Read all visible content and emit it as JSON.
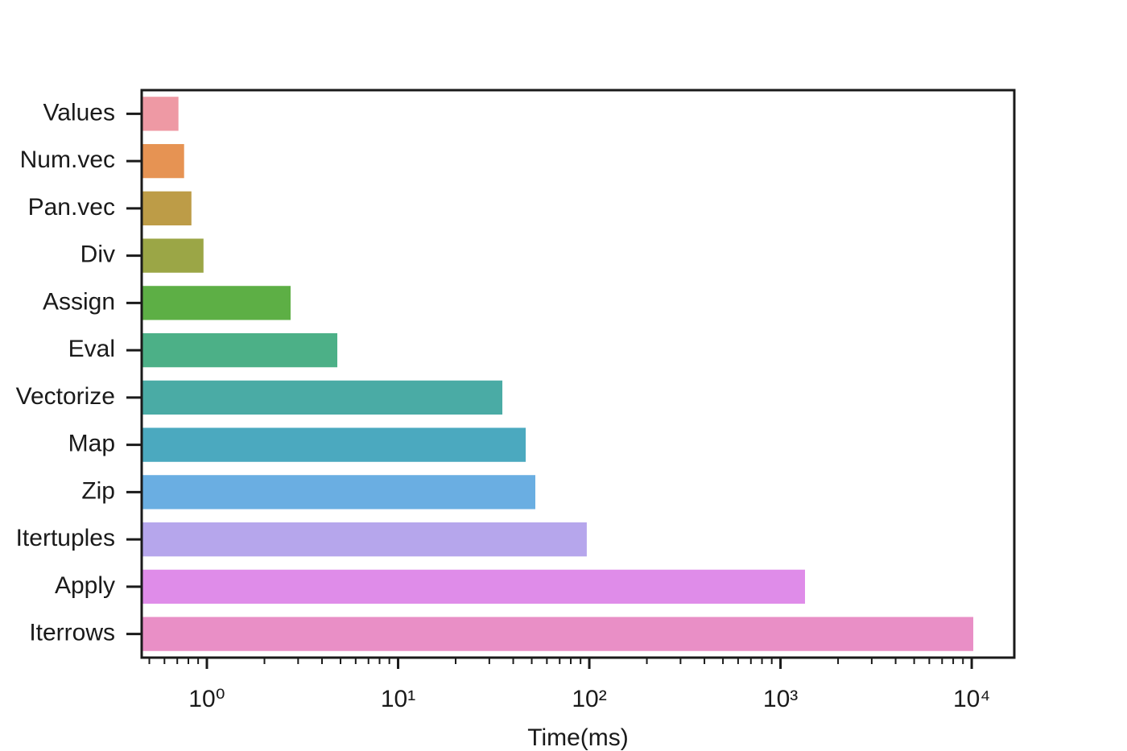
{
  "chart_data": {
    "type": "barh",
    "xlabel": "Time(ms)",
    "categories": [
      "Values",
      "Num.vec",
      "Pan.vec",
      "Div",
      "Assign",
      "Eval",
      "Vectorize",
      "Map",
      "Zip",
      "Itertuples",
      "Apply",
      "Iterrows"
    ],
    "values": [
      0.71,
      0.76,
      0.83,
      0.96,
      2.74,
      4.81,
      35.1,
      46.5,
      52.2,
      97,
      1343,
      10190
    ],
    "colors": [
      "#ee99a4",
      "#e69353",
      "#bd9c47",
      "#9ba646",
      "#5daf45",
      "#4cb087",
      "#4aaba5",
      "#4ba9bf",
      "#6aaee2",
      "#b6a6ec",
      "#df8ce9",
      "#e98fc6"
    ],
    "xscale": "log",
    "xlim": [
      0.456,
      16700
    ],
    "xticks": [
      {
        "value": 1,
        "label": "10⁰"
      },
      {
        "value": 10,
        "label": "10¹"
      },
      {
        "value": 100,
        "label": "10²"
      },
      {
        "value": 1000,
        "label": "10³"
      },
      {
        "value": 10000,
        "label": "10⁴"
      }
    ],
    "xminorticks": [
      0.5,
      0.6,
      0.7,
      0.8,
      0.9,
      2,
      3,
      4,
      5,
      6,
      7,
      8,
      9,
      20,
      30,
      40,
      50,
      60,
      70,
      80,
      90,
      200,
      300,
      400,
      500,
      600,
      700,
      800,
      900,
      2000,
      3000,
      4000,
      5000,
      6000,
      7000,
      8000,
      9000
    ]
  }
}
